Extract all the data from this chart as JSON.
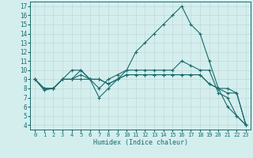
{
  "xlabel": "Humidex (Indice chaleur)",
  "background_color": "#d4eeee",
  "grid_color": "#c0d8d8",
  "line_color": "#1a6b6b",
  "xlim": [
    -0.5,
    23.5
  ],
  "ylim": [
    3.5,
    17.5
  ],
  "xticks": [
    0,
    1,
    2,
    3,
    4,
    5,
    6,
    7,
    8,
    9,
    10,
    11,
    12,
    13,
    14,
    15,
    16,
    17,
    18,
    19,
    20,
    21,
    22,
    23
  ],
  "yticks": [
    4,
    5,
    6,
    7,
    8,
    9,
    10,
    11,
    12,
    13,
    14,
    15,
    16,
    17
  ],
  "lines": [
    {
      "x": [
        0,
        1,
        2,
        3,
        4,
        5,
        6,
        7,
        8,
        9,
        10,
        11,
        12,
        13,
        14,
        15,
        16,
        17,
        18,
        19,
        20,
        21,
        22,
        23
      ],
      "y": [
        9.0,
        7.8,
        8.0,
        9.0,
        9.0,
        10.0,
        9.0,
        7.0,
        8.0,
        9.0,
        10.0,
        12.0,
        13.0,
        14.0,
        15.0,
        16.0,
        17.0,
        15.0,
        14.0,
        11.0,
        8.0,
        6.0,
        5.0,
        4.0
      ]
    },
    {
      "x": [
        0,
        1,
        2,
        3,
        4,
        5,
        6,
        7,
        8,
        9,
        10,
        11,
        12,
        13,
        14,
        15,
        16,
        17,
        18,
        19,
        20,
        21,
        22,
        23
      ],
      "y": [
        9.0,
        8.0,
        8.0,
        9.0,
        10.0,
        10.0,
        9.0,
        8.0,
        9.0,
        9.5,
        10.0,
        10.0,
        10.0,
        10.0,
        10.0,
        10.0,
        11.0,
        10.5,
        10.0,
        10.0,
        7.5,
        7.0,
        5.0,
        4.0
      ]
    },
    {
      "x": [
        0,
        1,
        2,
        3,
        4,
        5,
        6,
        7,
        8,
        9,
        10,
        11,
        12,
        13,
        14,
        15,
        16,
        17,
        18,
        19,
        20,
        21,
        22,
        23
      ],
      "y": [
        9.0,
        8.0,
        8.0,
        9.0,
        9.0,
        9.5,
        9.0,
        9.0,
        8.5,
        9.0,
        9.5,
        9.5,
        9.5,
        9.5,
        9.5,
        9.5,
        9.5,
        9.5,
        9.5,
        8.5,
        8.0,
        8.0,
        7.5,
        4.0
      ]
    },
    {
      "x": [
        0,
        1,
        2,
        3,
        4,
        5,
        6,
        7,
        8,
        9,
        10,
        11,
        12,
        13,
        14,
        15,
        16,
        17,
        18,
        19,
        20,
        21,
        22,
        23
      ],
      "y": [
        9.0,
        8.0,
        8.0,
        9.0,
        9.0,
        9.0,
        9.0,
        9.0,
        8.5,
        9.0,
        9.5,
        9.5,
        9.5,
        9.5,
        9.5,
        9.5,
        9.5,
        9.5,
        9.5,
        8.5,
        8.0,
        7.5,
        7.5,
        4.0
      ]
    }
  ]
}
